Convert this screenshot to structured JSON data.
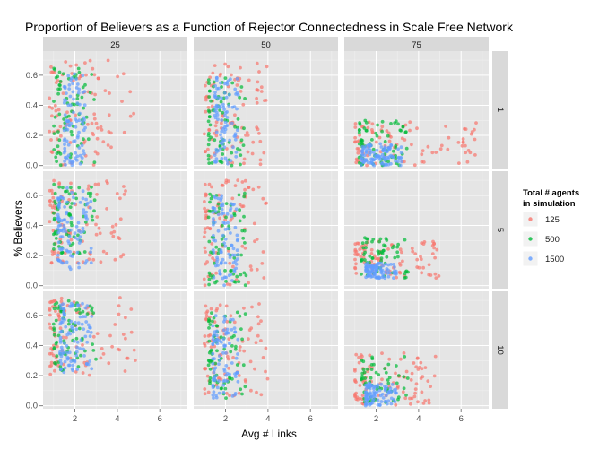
{
  "chart_data": {
    "type": "scatter",
    "title": "Proportion of Believers as a Function of Rejector Connectedness in Scale Free Network",
    "xlabel": "Avg # Links",
    "ylabel": "% Believers",
    "facet_columns": [
      "25",
      "50",
      "75"
    ],
    "facet_rows": [
      "1",
      "5",
      "10"
    ],
    "x_ticks": [
      2,
      4,
      6
    ],
    "y_ticks": [
      0.0,
      0.2,
      0.4,
      0.6
    ],
    "x_tick_labels": [
      "2",
      "4",
      "6"
    ],
    "y_tick_labels": [
      "0.0",
      "0.2",
      "0.4",
      "0.6"
    ],
    "xlim": [
      0.5,
      7.3
    ],
    "ylim": [
      -0.02,
      0.76
    ],
    "grid": true,
    "legend": {
      "title_line1": "Total # agents",
      "title_line2": "in simulation",
      "position": "right",
      "entries": [
        {
          "label": "125",
          "color": "#F8766D"
        },
        {
          "label": "500",
          "color": "#00BA38"
        },
        {
          "label": "1500",
          "color": "#619CFF"
        }
      ]
    },
    "series": [
      {
        "name": "125",
        "color": "#F8766D"
      },
      {
        "name": "500",
        "color": "#00BA38"
      },
      {
        "name": "1500",
        "color": "#619CFF"
      }
    ],
    "panels": [
      {
        "col": "25",
        "row": "1",
        "clusters": [
          {
            "series": "125",
            "x": [
              0.8,
              4.8
            ],
            "y": [
              0.0,
              0.7
            ],
            "n": 90
          },
          {
            "series": "500",
            "x": [
              1.0,
              3.0
            ],
            "y": [
              0.0,
              0.65
            ],
            "n": 70
          },
          {
            "series": "1500",
            "x": [
              1.5,
              2.5
            ],
            "y": [
              0.0,
              0.62
            ],
            "n": 90
          }
        ]
      },
      {
        "col": "50",
        "row": "1",
        "clusters": [
          {
            "series": "125",
            "x": [
              1.0,
              4.0
            ],
            "y": [
              0.0,
              0.68
            ],
            "n": 90
          },
          {
            "series": "500",
            "x": [
              1.2,
              3.0
            ],
            "y": [
              0.0,
              0.62
            ],
            "n": 70
          },
          {
            "series": "1500",
            "x": [
              1.5,
              2.6
            ],
            "y": [
              0.0,
              0.6
            ],
            "n": 90
          }
        ]
      },
      {
        "col": "75",
        "row": "1",
        "clusters": [
          {
            "series": "125",
            "x": [
              1.0,
              7.0
            ],
            "y": [
              0.0,
              0.3
            ],
            "n": 90
          },
          {
            "series": "500",
            "x": [
              1.2,
              3.5
            ],
            "y": [
              0.0,
              0.3
            ],
            "n": 70
          },
          {
            "series": "1500",
            "x": [
              1.3,
              3.2
            ],
            "y": [
              0.0,
              0.15
            ],
            "n": 100
          }
        ]
      },
      {
        "col": "25",
        "row": "5",
        "clusters": [
          {
            "series": "125",
            "x": [
              0.8,
              4.5
            ],
            "y": [
              0.15,
              0.7
            ],
            "n": 90
          },
          {
            "series": "500",
            "x": [
              1.0,
              3.0
            ],
            "y": [
              0.2,
              0.68
            ],
            "n": 70
          },
          {
            "series": "1500",
            "x": [
              1.2,
              2.8
            ],
            "y": [
              0.1,
              0.65
            ],
            "n": 100
          }
        ]
      },
      {
        "col": "50",
        "row": "5",
        "clusters": [
          {
            "series": "125",
            "x": [
              1.0,
              4.0
            ],
            "y": [
              0.0,
              0.7
            ],
            "n": 90
          },
          {
            "series": "500",
            "x": [
              1.2,
              3.0
            ],
            "y": [
              0.0,
              0.62
            ],
            "n": 70
          },
          {
            "series": "1500",
            "x": [
              1.4,
              2.6
            ],
            "y": [
              0.0,
              0.6
            ],
            "n": 90
          }
        ]
      },
      {
        "col": "75",
        "row": "5",
        "clusters": [
          {
            "series": "125",
            "x": [
              1.0,
              5.0
            ],
            "y": [
              0.05,
              0.3
            ],
            "n": 90
          },
          {
            "series": "500",
            "x": [
              1.3,
              3.5
            ],
            "y": [
              0.05,
              0.32
            ],
            "n": 60
          },
          {
            "series": "1500",
            "x": [
              1.5,
              3.0
            ],
            "y": [
              0.05,
              0.15
            ],
            "n": 90
          }
        ]
      },
      {
        "col": "25",
        "row": "10",
        "clusters": [
          {
            "series": "125",
            "x": [
              0.8,
              5.0
            ],
            "y": [
              0.2,
              0.72
            ],
            "n": 90
          },
          {
            "series": "500",
            "x": [
              1.0,
              3.0
            ],
            "y": [
              0.22,
              0.7
            ],
            "n": 70
          },
          {
            "series": "1500",
            "x": [
              1.3,
              2.8
            ],
            "y": [
              0.22,
              0.68
            ],
            "n": 100
          }
        ]
      },
      {
        "col": "50",
        "row": "10",
        "clusters": [
          {
            "series": "125",
            "x": [
              1.0,
              4.0
            ],
            "y": [
              0.05,
              0.68
            ],
            "n": 90
          },
          {
            "series": "500",
            "x": [
              1.2,
              3.0
            ],
            "y": [
              0.05,
              0.65
            ],
            "n": 70
          },
          {
            "series": "1500",
            "x": [
              1.4,
              2.6
            ],
            "y": [
              0.05,
              0.6
            ],
            "n": 90
          }
        ]
      },
      {
        "col": "75",
        "row": "10",
        "clusters": [
          {
            "series": "125",
            "x": [
              1.0,
              4.8
            ],
            "y": [
              0.0,
              0.35
            ],
            "n": 90
          },
          {
            "series": "500",
            "x": [
              1.3,
              3.5
            ],
            "y": [
              0.02,
              0.33
            ],
            "n": 60
          },
          {
            "series": "1500",
            "x": [
              1.5,
              3.0
            ],
            "y": [
              0.0,
              0.15
            ],
            "n": 90
          }
        ]
      }
    ]
  }
}
